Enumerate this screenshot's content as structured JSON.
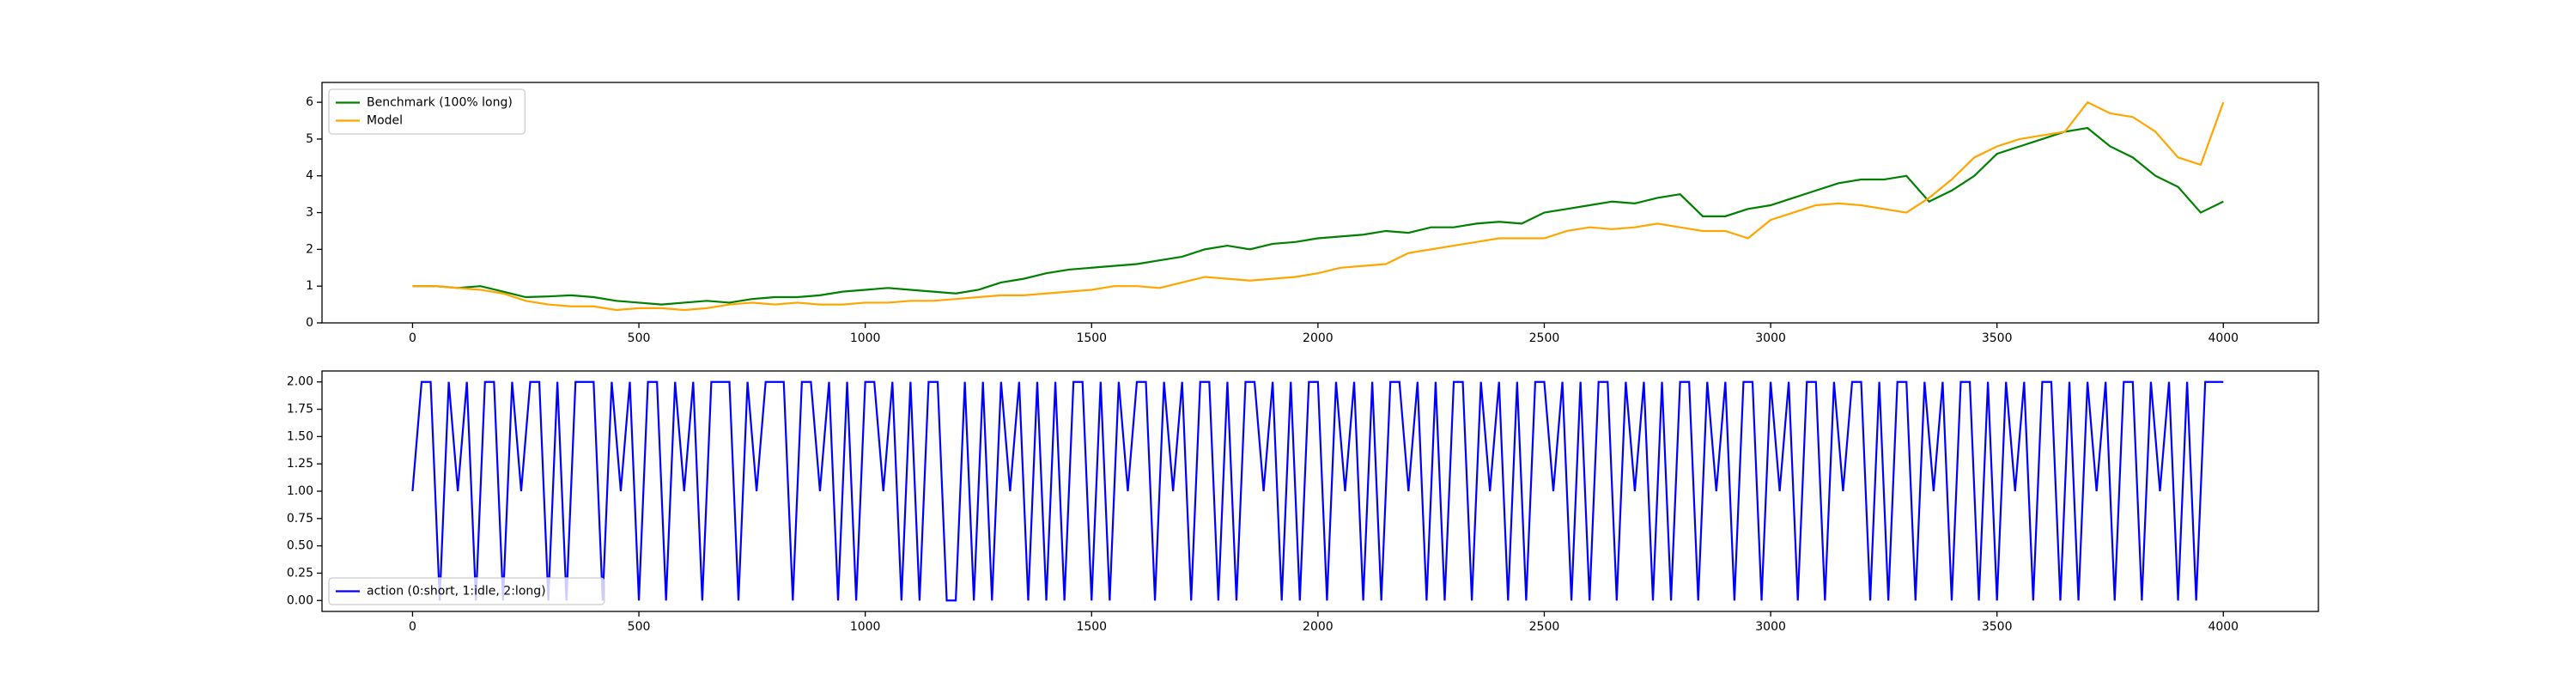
{
  "chart_data": [
    {
      "type": "line",
      "x": [
        0,
        50,
        100,
        150,
        200,
        250,
        300,
        350,
        400,
        450,
        500,
        550,
        600,
        650,
        700,
        750,
        800,
        850,
        900,
        950,
        1000,
        1050,
        1100,
        1150,
        1200,
        1250,
        1300,
        1350,
        1400,
        1450,
        1500,
        1550,
        1600,
        1650,
        1700,
        1750,
        1800,
        1850,
        1900,
        1950,
        2000,
        2050,
        2100,
        2150,
        2200,
        2250,
        2300,
        2350,
        2400,
        2450,
        2500,
        2550,
        2600,
        2650,
        2700,
        2750,
        2800,
        2850,
        2900,
        2950,
        3000,
        3050,
        3100,
        3150,
        3200,
        3250,
        3300,
        3350,
        3400,
        3450,
        3500,
        3550,
        3600,
        3650,
        3700,
        3750,
        3800,
        3850,
        3900,
        3950,
        4000
      ],
      "series": [
        {
          "name": "Benchmark (100% long)",
          "color": "green",
          "values": [
            1.0,
            1.0,
            0.95,
            1.0,
            0.85,
            0.7,
            0.72,
            0.75,
            0.7,
            0.6,
            0.55,
            0.5,
            0.55,
            0.6,
            0.55,
            0.65,
            0.7,
            0.7,
            0.75,
            0.85,
            0.9,
            0.95,
            0.9,
            0.85,
            0.8,
            0.9,
            1.1,
            1.2,
            1.35,
            1.45,
            1.5,
            1.55,
            1.6,
            1.7,
            1.8,
            2.0,
            2.1,
            2.0,
            2.15,
            2.2,
            2.3,
            2.35,
            2.4,
            2.5,
            2.45,
            2.6,
            2.6,
            2.7,
            2.75,
            2.7,
            3.0,
            3.1,
            3.2,
            3.3,
            3.25,
            3.4,
            3.5,
            2.9,
            2.9,
            3.1,
            3.2,
            3.4,
            3.6,
            3.8,
            3.9,
            3.9,
            4.0,
            3.3,
            3.6,
            4.0,
            4.6,
            4.8,
            5.0,
            5.2,
            5.3,
            4.8,
            4.5,
            4.0,
            3.7,
            3.0,
            3.3
          ]
        },
        {
          "name": "Model",
          "color": "orange",
          "values": [
            1.0,
            1.0,
            0.95,
            0.9,
            0.8,
            0.6,
            0.5,
            0.45,
            0.45,
            0.35,
            0.4,
            0.4,
            0.35,
            0.4,
            0.5,
            0.55,
            0.5,
            0.55,
            0.5,
            0.5,
            0.55,
            0.55,
            0.6,
            0.6,
            0.65,
            0.7,
            0.75,
            0.75,
            0.8,
            0.85,
            0.9,
            1.0,
            1.0,
            0.95,
            1.1,
            1.25,
            1.2,
            1.15,
            1.2,
            1.25,
            1.35,
            1.5,
            1.55,
            1.6,
            1.9,
            2.0,
            2.1,
            2.2,
            2.3,
            2.3,
            2.3,
            2.5,
            2.6,
            2.55,
            2.6,
            2.7,
            2.6,
            2.5,
            2.5,
            2.3,
            2.8,
            3.0,
            3.2,
            3.25,
            3.2,
            3.1,
            3.0,
            3.4,
            3.9,
            4.5,
            4.8,
            5.0,
            5.1,
            5.2,
            6.0,
            5.7,
            5.6,
            5.2,
            4.5,
            4.3,
            6.0
          ]
        }
      ],
      "xlim": [
        -200,
        4210
      ],
      "ylim": [
        0,
        6.54
      ],
      "xticks": [
        0,
        500,
        1000,
        1500,
        2000,
        2500,
        3000,
        3500,
        4000
      ],
      "yticks": [
        0,
        1,
        2,
        3,
        4,
        5,
        6
      ],
      "legend": "upper left"
    },
    {
      "type": "line",
      "x": [
        0,
        20,
        40,
        60,
        80,
        100,
        120,
        140,
        160,
        180,
        200,
        220,
        240,
        260,
        280,
        300,
        320,
        340,
        360,
        380,
        400,
        420,
        440,
        460,
        480,
        500,
        520,
        540,
        560,
        580,
        600,
        620,
        640,
        660,
        680,
        700,
        720,
        740,
        760,
        780,
        800,
        820,
        840,
        860,
        880,
        900,
        920,
        940,
        960,
        980,
        1000,
        1020,
        1040,
        1060,
        1080,
        1100,
        1120,
        1140,
        1160,
        1180,
        1200,
        1220,
        1240,
        1260,
        1280,
        1300,
        1320,
        1340,
        1360,
        1380,
        1400,
        1420,
        1440,
        1460,
        1480,
        1500,
        1520,
        1540,
        1560,
        1580,
        1600,
        1620,
        1640,
        1660,
        1680,
        1700,
        1720,
        1740,
        1760,
        1780,
        1800,
        1820,
        1840,
        1860,
        1880,
        1900,
        1920,
        1940,
        1960,
        1980,
        2000,
        2020,
        2040,
        2060,
        2080,
        2100,
        2120,
        2140,
        2160,
        2180,
        2200,
        2220,
        2240,
        2260,
        2280,
        2300,
        2320,
        2340,
        2360,
        2380,
        2400,
        2420,
        2440,
        2460,
        2480,
        2500,
        2520,
        2540,
        2560,
        2580,
        2600,
        2620,
        2640,
        2660,
        2680,
        2700,
        2720,
        2740,
        2760,
        2780,
        2800,
        2820,
        2840,
        2860,
        2880,
        2900,
        2920,
        2940,
        2960,
        2980,
        3000,
        3020,
        3040,
        3060,
        3080,
        3100,
        3120,
        3140,
        3160,
        3180,
        3200,
        3220,
        3240,
        3260,
        3280,
        3300,
        3320,
        3340,
        3360,
        3380,
        3400,
        3420,
        3440,
        3460,
        3480,
        3500,
        3520,
        3540,
        3560,
        3580,
        3600,
        3620,
        3640,
        3660,
        3680,
        3700,
        3720,
        3740,
        3760,
        3780,
        3800,
        3820,
        3840,
        3860,
        3880,
        3900,
        3920,
        3940,
        3960,
        3980,
        4000
      ],
      "series": [
        {
          "name": "action (0:short, 1:idle, 2:long)",
          "color": "blue",
          "values": [
            1,
            2,
            2,
            0,
            2,
            1,
            2,
            0,
            2,
            2,
            0,
            2,
            1,
            2,
            2,
            0,
            2,
            0,
            2,
            2,
            2,
            0,
            2,
            1,
            2,
            0,
            2,
            2,
            0,
            2,
            1,
            2,
            0,
            2,
            2,
            2,
            0,
            2,
            1,
            2,
            2,
            2,
            0,
            2,
            2,
            1,
            2,
            0,
            2,
            0,
            2,
            2,
            1,
            2,
            0,
            2,
            0,
            2,
            2,
            0,
            0,
            2,
            0,
            2,
            0,
            2,
            1,
            2,
            0,
            2,
            0,
            2,
            0,
            2,
            2,
            0,
            2,
            0,
            2,
            1,
            2,
            2,
            0,
            2,
            1,
            2,
            0,
            2,
            2,
            0,
            2,
            0,
            2,
            2,
            1,
            2,
            0,
            2,
            0,
            2,
            2,
            0,
            2,
            1,
            2,
            0,
            2,
            0,
            2,
            2,
            1,
            2,
            0,
            2,
            0,
            2,
            2,
            0,
            2,
            1,
            2,
            0,
            2,
            0,
            2,
            2,
            1,
            2,
            0,
            2,
            0,
            2,
            2,
            0,
            2,
            1,
            2,
            0,
            2,
            0,
            2,
            2,
            0,
            2,
            1,
            2,
            0,
            2,
            2,
            0,
            2,
            1,
            2,
            0,
            2,
            2,
            0,
            2,
            1,
            2,
            2,
            0,
            2,
            0,
            2,
            2,
            0,
            2,
            1,
            2,
            0,
            2,
            2,
            0,
            2,
            0,
            2,
            1,
            2,
            0,
            2,
            2,
            0,
            2,
            0,
            2,
            1,
            2,
            0,
            2,
            2,
            0,
            2,
            1,
            2,
            0,
            2,
            0,
            2,
            2,
            2
          ]
        }
      ],
      "xlim": [
        -200,
        4210
      ],
      "ylim": [
        -0.1,
        2.1
      ],
      "xticks": [
        0,
        500,
        1000,
        1500,
        2000,
        2500,
        3000,
        3500,
        4000
      ],
      "yticks": [
        {
          "value": 0,
          "label": "0.00"
        },
        {
          "value": 0.25,
          "label": "0.25"
        },
        {
          "value": 0.5,
          "label": "0.50"
        },
        {
          "value": 0.75,
          "label": "0.75"
        },
        {
          "value": 1,
          "label": "1.00"
        },
        {
          "value": 1.25,
          "label": "1.25"
        },
        {
          "value": 1.5,
          "label": "1.50"
        },
        {
          "value": 1.75,
          "label": "1.75"
        },
        {
          "value": 2,
          "label": "2.00"
        }
      ],
      "legend": "lower left"
    }
  ]
}
